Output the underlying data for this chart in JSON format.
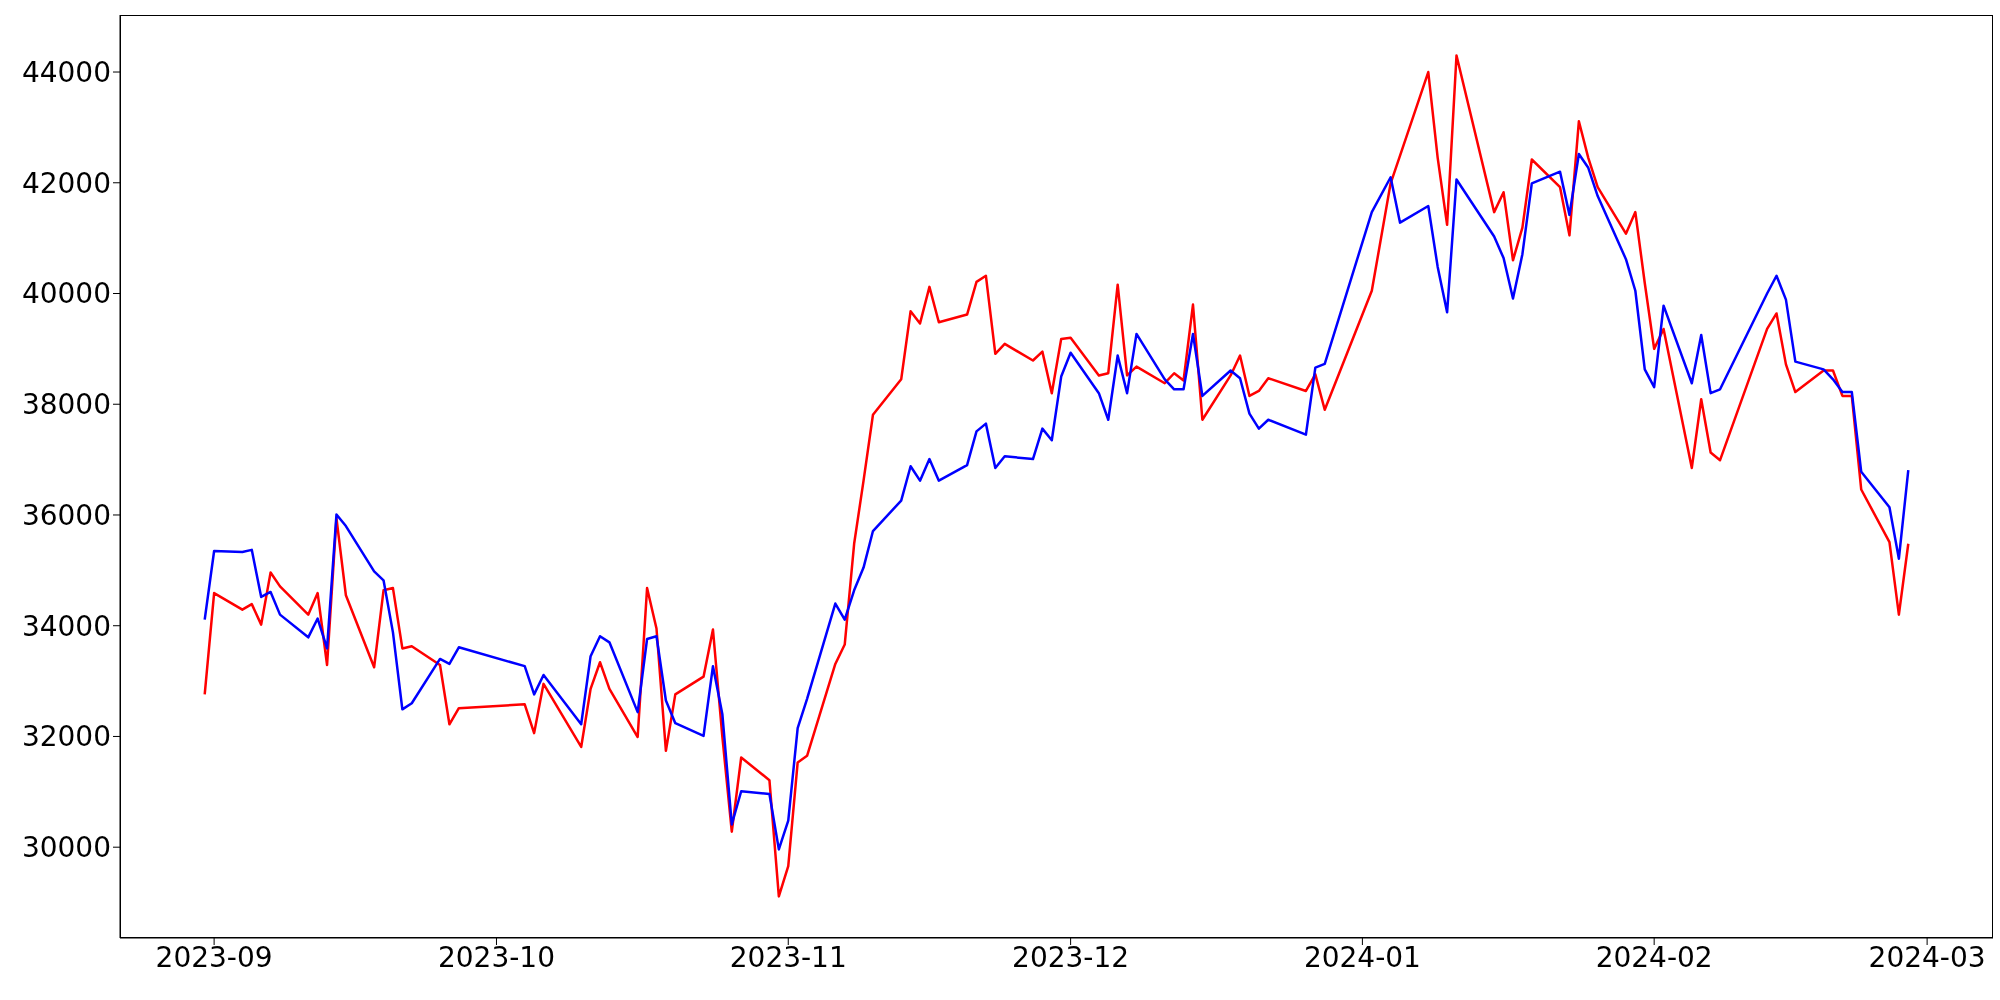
{
  "chart_data": {
    "type": "line",
    "x": [
      "2023-08-31",
      "2023-09-01",
      "2023-09-04",
      "2023-09-05",
      "2023-09-06",
      "2023-09-07",
      "2023-09-08",
      "2023-09-11",
      "2023-09-12",
      "2023-09-13",
      "2023-09-14",
      "2023-09-15",
      "2023-09-18",
      "2023-09-19",
      "2023-09-20",
      "2023-09-21",
      "2023-09-22",
      "2023-09-25",
      "2023-09-26",
      "2023-09-27",
      "2023-10-04",
      "2023-10-05",
      "2023-10-06",
      "2023-10-10",
      "2023-10-11",
      "2023-10-12",
      "2023-10-13",
      "2023-10-16",
      "2023-10-17",
      "2023-10-18",
      "2023-10-19",
      "2023-10-20",
      "2023-10-23",
      "2023-10-24",
      "2023-10-25",
      "2023-10-26",
      "2023-10-27",
      "2023-10-30",
      "2023-10-31",
      "2023-11-01",
      "2023-11-02",
      "2023-11-03",
      "2023-11-06",
      "2023-11-07",
      "2023-11-08",
      "2023-11-09",
      "2023-11-10",
      "2023-11-13",
      "2023-11-14",
      "2023-11-15",
      "2023-11-16",
      "2023-11-17",
      "2023-11-20",
      "2023-11-21",
      "2023-11-22",
      "2023-11-23",
      "2023-11-24",
      "2023-11-27",
      "2023-11-28",
      "2023-11-29",
      "2023-11-30",
      "2023-12-01",
      "2023-12-04",
      "2023-12-05",
      "2023-12-06",
      "2023-12-07",
      "2023-12-08",
      "2023-12-11",
      "2023-12-12",
      "2023-12-13",
      "2023-12-14",
      "2023-12-15",
      "2023-12-18",
      "2023-12-19",
      "2023-12-20",
      "2023-12-21",
      "2023-12-22",
      "2023-12-26",
      "2023-12-27",
      "2023-12-28",
      "2024-01-02",
      "2024-01-04",
      "2024-01-05",
      "2024-01-08",
      "2024-01-09",
      "2024-01-10",
      "2024-01-11",
      "2024-01-15",
      "2024-01-16",
      "2024-01-17",
      "2024-01-18",
      "2024-01-19",
      "2024-01-22",
      "2024-01-23",
      "2024-01-24",
      "2024-01-25",
      "2024-01-26",
      "2024-01-29",
      "2024-01-30",
      "2024-01-31",
      "2024-02-01",
      "2024-02-02",
      "2024-02-05",
      "2024-02-06",
      "2024-02-07",
      "2024-02-08",
      "2024-02-13",
      "2024-02-14",
      "2024-02-15",
      "2024-02-16",
      "2024-02-19",
      "2024-02-20",
      "2024-02-21",
      "2024-02-22",
      "2024-02-23",
      "2024-02-26",
      "2024-02-27",
      "2024-02-28"
    ],
    "series": [
      {
        "color": "#ff0000",
        "values": [
          32760,
          34590,
          34290,
          34390,
          34020,
          34960,
          34710,
          34200,
          34590,
          33290,
          35940,
          34550,
          33250,
          34640,
          34680,
          33590,
          33630,
          33290,
          32220,
          32510,
          32580,
          32060,
          32950,
          31810,
          32860,
          33340,
          32860,
          31990,
          34680,
          33950,
          31740,
          32760,
          33080,
          33930,
          31990,
          30280,
          31620,
          31210,
          29110,
          29660,
          31530,
          31650,
          33310,
          33660,
          35480,
          36620,
          37810,
          38450,
          39680,
          39460,
          40120,
          39480,
          39620,
          40210,
          40320,
          38910,
          39090,
          38790,
          38950,
          38200,
          39180,
          39200,
          38520,
          38560,
          40160,
          38520,
          38680,
          38380,
          38560,
          38430,
          39800,
          37720,
          38520,
          38880,
          38150,
          38240,
          38470,
          38240,
          38540,
          37900,
          40050,
          41990,
          42490,
          44000,
          42450,
          41240,
          44300,
          41470,
          41830,
          40600,
          41190,
          42420,
          41920,
          41050,
          43110,
          42450,
          41920,
          41080,
          41470,
          40190,
          39000,
          39360,
          36850,
          38090,
          37130,
          36990,
          39360,
          39640,
          38720,
          38220,
          38610,
          38610,
          38150,
          38150,
          36460,
          35510,
          34200,
          35480
        ]
      },
      {
        "color": "#0000ff",
        "values": [
          34110,
          35350,
          35330,
          35370,
          34520,
          34610,
          34200,
          33790,
          34130,
          33590,
          36010,
          35800,
          34980,
          34820,
          33880,
          32490,
          32600,
          33400,
          33310,
          33610,
          33270,
          32760,
          33110,
          32220,
          33450,
          33810,
          33700,
          32440,
          33760,
          33810,
          32650,
          32240,
          32010,
          33270,
          32400,
          30410,
          31010,
          30960,
          29960,
          30480,
          32150,
          32680,
          34400,
          34110,
          34640,
          35050,
          35710,
          36260,
          36880,
          36620,
          37010,
          36620,
          36900,
          37510,
          37650,
          36850,
          37060,
          37010,
          37560,
          37350,
          38500,
          38930,
          38200,
          37720,
          38880,
          38200,
          39270,
          38450,
          38270,
          38270,
          39270,
          38150,
          38610,
          38470,
          37830,
          37560,
          37720,
          37450,
          38660,
          38730,
          41470,
          42100,
          41280,
          41580,
          40480,
          39660,
          42060,
          41030,
          40640,
          39910,
          40710,
          41990,
          42200,
          41420,
          42520,
          42270,
          41760,
          40620,
          40050,
          38630,
          38310,
          39780,
          38380,
          39250,
          38200,
          38270,
          40000,
          40320,
          39890,
          38770,
          38630,
          38450,
          38220,
          38220,
          36780,
          36140,
          35210,
          36810
        ]
      }
    ],
    "xlim": [
      "2023-08-22",
      "2024-03-08"
    ],
    "xticks": [
      "2023-09",
      "2023-10",
      "2023-11",
      "2023-12",
      "2024-01",
      "2024-02",
      "2024-03"
    ],
    "ylim": [
      28360,
      45030
    ],
    "yticks": [
      30000,
      32000,
      34000,
      36000,
      38000,
      40000,
      42000,
      44000
    ],
    "grid": false
  }
}
